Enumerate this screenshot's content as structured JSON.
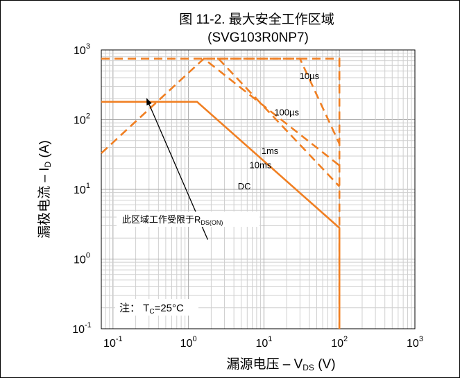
{
  "chart_data": {
    "type": "line",
    "title": "图 11-2. 最大安全工作区域",
    "subtitle": "(SVG103R0NP7)",
    "xlabel_main": "漏源电压 – V",
    "xlabel_sub": "DS",
    "xlabel_unit": " (V)",
    "ylabel_main": "漏极电流 – I",
    "ylabel_sub": "D",
    "ylabel_unit": " (A)",
    "x_scale": "log",
    "y_scale": "log",
    "xlim": [
      0.07,
      1000
    ],
    "ylim": [
      0.1,
      1000
    ],
    "grid": true,
    "x_ticks": [
      {
        "base": "10",
        "exp": "-1",
        "value": 0.1
      },
      {
        "base": "10",
        "exp": "0",
        "value": 1
      },
      {
        "base": "10",
        "exp": "1",
        "value": 10
      },
      {
        "base": "10",
        "exp": "2",
        "value": 100
      },
      {
        "base": "10",
        "exp": "3",
        "value": 1000
      }
    ],
    "y_ticks": [
      {
        "base": "10",
        "exp": "-1",
        "value": 0.1
      },
      {
        "base": "10",
        "exp": "0",
        "value": 1
      },
      {
        "base": "10",
        "exp": "1",
        "value": 10
      },
      {
        "base": "10",
        "exp": "2",
        "value": 100
      },
      {
        "base": "10",
        "exp": "3",
        "value": 1000
      }
    ],
    "color": "#F07F22",
    "series": [
      {
        "name": "10µs",
        "style": "dashed",
        "points": [
          [
            0.07,
            750
          ],
          [
            100,
            750
          ],
          [
            100,
            270
          ]
        ]
      },
      {
        "name": "100µs",
        "style": "dashed",
        "points": [
          [
            1.6,
            750
          ],
          [
            30,
            750
          ],
          [
            100,
            45
          ]
        ]
      },
      {
        "name": "1ms",
        "style": "dashed",
        "points": [
          [
            0.07,
            33
          ],
          [
            1.6,
            750
          ],
          [
            100,
            22
          ]
        ]
      },
      {
        "name": "10ms",
        "style": "dashed",
        "points": [
          [
            2.5,
            750
          ],
          [
            100,
            11
          ]
        ]
      },
      {
        "name": "DC",
        "style": "solid",
        "points": [
          [
            0.07,
            180
          ],
          [
            1.3,
            180
          ],
          [
            100,
            2.8
          ],
          [
            100,
            0.1
          ]
        ]
      },
      {
        "name": "vds-limit",
        "style": "dashed",
        "points": [
          [
            100,
            750
          ],
          [
            100,
            0.1
          ]
        ]
      }
    ],
    "series_labels": [
      {
        "text": "10µs",
        "x": 40,
        "y": 380
      },
      {
        "text": "100µs",
        "x": 20,
        "y": 115
      },
      {
        "text": "1ms",
        "x": 12,
        "y": 32
      },
      {
        "text": "10ms",
        "x": 9,
        "y": 20
      },
      {
        "text": "DC",
        "x": 5.5,
        "y": 10
      }
    ],
    "annotations": [
      {
        "text_main": "此区域工作受限于R",
        "text_sub": "DS(ON)",
        "from": [
          1.8,
          1.9
        ],
        "to": [
          0.28,
          200
        ]
      },
      {
        "text_main": "注：  T",
        "text_sub": "C",
        "text_tail": "=25°C",
        "at": [
          0.21,
          0.25
        ]
      }
    ]
  }
}
